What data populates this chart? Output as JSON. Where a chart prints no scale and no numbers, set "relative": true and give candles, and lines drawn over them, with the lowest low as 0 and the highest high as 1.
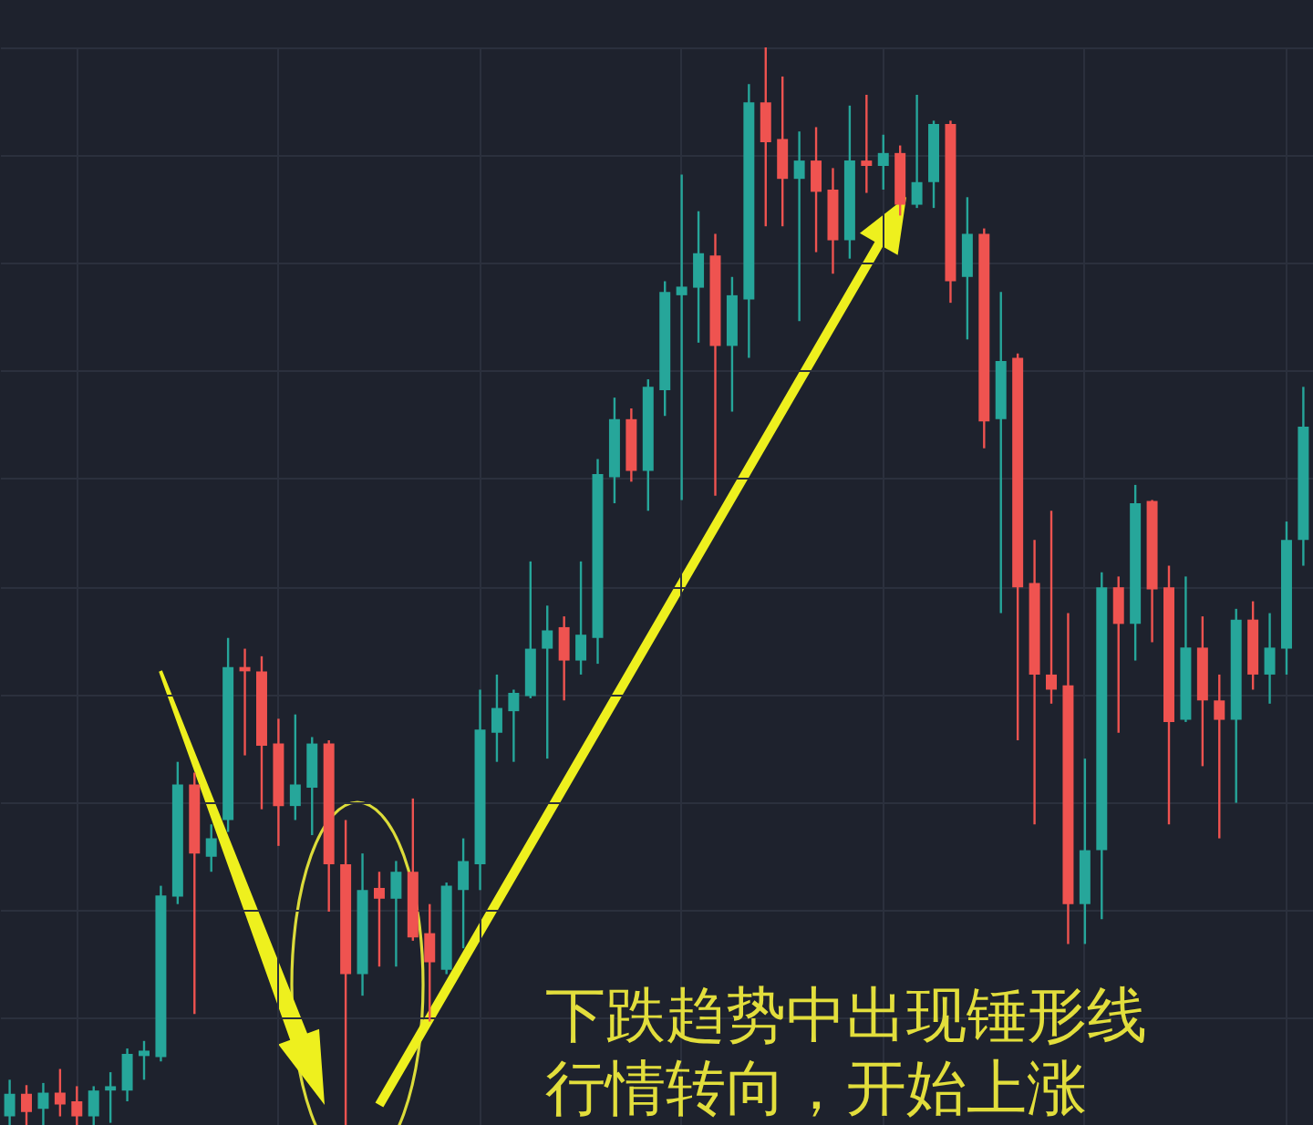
{
  "chart_data": {
    "type": "candlestick",
    "relative": true,
    "grid": true,
    "categories": [
      null,
      null,
      null,
      null,
      null,
      null,
      null,
      null,
      null,
      null,
      null,
      null,
      null,
      null,
      null,
      null,
      null,
      null,
      null,
      null,
      null,
      null,
      null,
      null,
      null,
      null,
      null,
      null,
      null,
      null,
      null,
      null,
      null,
      null,
      null,
      null,
      null,
      null,
      null,
      null,
      null,
      null,
      null,
      null,
      null,
      null,
      null,
      null,
      null,
      null,
      null,
      null,
      null,
      null,
      null,
      null,
      null,
      null,
      null,
      null,
      null,
      null,
      null,
      null,
      null,
      null,
      null,
      null,
      null,
      null,
      null,
      null,
      null,
      null,
      null,
      null,
      null,
      null
    ],
    "ohlc": [
      [
        0.008,
        0.042,
        0,
        0.029
      ],
      [
        0.029,
        0.037,
        0,
        0.012
      ],
      [
        0.015,
        0.039,
        0,
        0.03
      ],
      [
        0.03,
        0.052,
        0.008,
        0.019
      ],
      [
        0.022,
        0.036,
        0,
        0.008
      ],
      [
        0.008,
        0.036,
        0,
        0.032
      ],
      [
        0.032,
        0.049,
        0.002,
        0.036
      ],
      [
        0.032,
        0.071,
        0.022,
        0.066
      ],
      [
        0.064,
        0.078,
        0.042,
        0.069
      ],
      [
        0.063,
        0.222,
        0.059,
        0.213
      ],
      [
        0.212,
        0.337,
        0.205,
        0.316
      ],
      [
        0.316,
        0.327,
        0.103,
        0.252
      ],
      [
        0.249,
        0.279,
        0.235,
        0.266
      ],
      [
        0.283,
        0.452,
        0.272,
        0.425
      ],
      [
        0.425,
        0.442,
        0.343,
        0.421
      ],
      [
        0.421,
        0.435,
        0.293,
        0.352
      ],
      [
        0.354,
        0.377,
        0.259,
        0.296
      ],
      [
        0.296,
        0.381,
        0.283,
        0.316
      ],
      [
        0.313,
        0.36,
        0.269,
        0.354
      ],
      [
        0.354,
        0.357,
        0.198,
        0.242
      ],
      [
        0.242,
        0.283,
        0,
        0.14
      ],
      [
        0.14,
        0.252,
        0.12,
        0.218
      ],
      [
        0.22,
        0.235,
        0.147,
        0.21
      ],
      [
        0.21,
        0.245,
        0.147,
        0.235
      ],
      [
        0.235,
        0.303,
        0.171,
        0.174
      ],
      [
        0.178,
        0.205,
        0.096,
        0.151
      ],
      [
        0.144,
        0.225,
        0.14,
        0.222
      ],
      [
        0.218,
        0.266,
        0.164,
        0.245
      ],
      [
        0.242,
        0.404,
        0.218,
        0.367
      ],
      [
        0.364,
        0.418,
        0.337,
        0.387
      ],
      [
        0.384,
        0.404,
        0.337,
        0.401
      ],
      [
        0.398,
        0.523,
        0.396,
        0.442
      ],
      [
        0.442,
        0.482,
        0.34,
        0.459
      ],
      [
        0.462,
        0.472,
        0.394,
        0.431
      ],
      [
        0.431,
        0.523,
        0.418,
        0.455
      ],
      [
        0.452,
        0.618,
        0.428,
        0.604
      ],
      [
        0.601,
        0.675,
        0.577,
        0.655
      ],
      [
        0.655,
        0.665,
        0.597,
        0.607
      ],
      [
        0.607,
        0.692,
        0.57,
        0.685
      ],
      [
        0.682,
        0.783,
        0.658,
        0.773
      ],
      [
        0.77,
        0.882,
        0.58,
        0.778
      ],
      [
        0.777,
        0.848,
        0.726,
        0.809
      ],
      [
        0.807,
        0.827,
        0.584,
        0.723
      ],
      [
        0.723,
        0.787,
        0.662,
        0.77
      ],
      [
        0.766,
        0.966,
        0.712,
        0.949
      ],
      [
        0.949,
        1,
        0.834,
        0.912
      ],
      [
        0.915,
        0.973,
        0.834,
        0.878
      ],
      [
        0.878,
        0.922,
        0.746,
        0.895
      ],
      [
        0.895,
        0.926,
        0.81,
        0.866
      ],
      [
        0.868,
        0.888,
        0.79,
        0.821
      ],
      [
        0.821,
        0.946,
        0.804,
        0.895
      ],
      [
        0.895,
        0.956,
        0.865,
        0.89
      ],
      [
        0.89,
        0.919,
        0.868,
        0.902
      ],
      [
        0.902,
        0.909,
        0.844,
        0.854
      ],
      [
        0.854,
        0.956,
        0.851,
        0.875
      ],
      [
        0.875,
        0.932,
        0.851,
        0.929
      ],
      [
        0.929,
        0.932,
        0.763,
        0.783
      ],
      [
        0.787,
        0.861,
        0.729,
        0.827
      ],
      [
        0.827,
        0.832,
        0.628,
        0.653
      ],
      [
        0.655,
        0.773,
        0.475,
        0.709
      ],
      [
        0.712,
        0.716,
        0.357,
        0.499
      ],
      [
        0.503,
        0.543,
        0.279,
        0.418
      ],
      [
        0.418,
        0.57,
        0.391,
        0.404
      ],
      [
        0.408,
        0.475,
        0.168,
        0.205
      ],
      [
        0.205,
        0.34,
        0.168,
        0.255
      ],
      [
        0.255,
        0.513,
        0.191,
        0.499
      ],
      [
        0.499,
        0.509,
        0.364,
        0.465
      ],
      [
        0.465,
        0.594,
        0.431,
        0.577
      ],
      [
        0.579,
        0.58,
        0.448,
        0.497
      ],
      [
        0.499,
        0.519,
        0.279,
        0.374
      ],
      [
        0.376,
        0.509,
        0.374,
        0.443
      ],
      [
        0.443,
        0.472,
        0.333,
        0.394
      ],
      [
        0.394,
        0.418,
        0.266,
        0.376
      ],
      [
        0.376,
        0.479,
        0.299,
        0.469
      ],
      [
        0.469,
        0.486,
        0.404,
        0.418
      ],
      [
        0.418,
        0.475,
        0.391,
        0.443
      ],
      [
        0.442,
        0.56,
        0.418,
        0.543
      ],
      [
        0.543,
        0.685,
        0.519,
        0.648
      ]
    ],
    "colors": [
      "#26a69a",
      "#ef5350",
      "#26a69a",
      "#ef5350",
      "#ef5350",
      "#26a69a",
      "#26a69a",
      "#26a69a",
      "#26a69a",
      "#26a69a",
      "#26a69a",
      "#ef5350",
      "#26a69a",
      "#26a69a",
      "#ef5350",
      "#ef5350",
      "#ef5350",
      "#26a69a",
      "#26a69a",
      "#ef5350",
      "#ef5350",
      "#26a69a",
      "#ef5350",
      "#26a69a",
      "#ef5350",
      "#ef5350",
      "#26a69a",
      "#26a69a",
      "#26a69a",
      "#26a69a",
      "#26a69a",
      "#26a69a",
      "#26a69a",
      "#ef5350",
      "#26a69a",
      "#26a69a",
      "#26a69a",
      "#ef5350",
      "#26a69a",
      "#26a69a",
      "#26a69a",
      "#26a69a",
      "#ef5350",
      "#26a69a",
      "#26a69a",
      "#ef5350",
      "#ef5350",
      "#26a69a",
      "#ef5350",
      "#ef5350",
      "#26a69a",
      "#ef5350",
      "#26a69a",
      "#ef5350",
      "#26a69a",
      "#26a69a",
      "#ef5350",
      "#26a69a",
      "#ef5350",
      "#26a69a",
      "#ef5350",
      "#ef5350",
      "#ef5350",
      "#ef5350",
      "#26a69a",
      "#26a69a",
      "#ef5350",
      "#26a69a",
      "#ef5350",
      "#ef5350",
      "#26a69a",
      "#ef5350",
      "#ef5350",
      "#26a69a",
      "#ef5350",
      "#26a69a",
      "#26a69a",
      "#26a69a"
    ],
    "annotations": [
      "下跌趋势中出现锤形线",
      "行情转向，开始上涨"
    ]
  }
}
